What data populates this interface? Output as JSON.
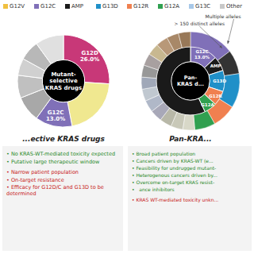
{
  "legend": "top",
  "legend_items": [
    {
      "name": "G12V",
      "color": "#F0C040"
    },
    {
      "name": "G12C",
      "color": "#8070B8"
    },
    {
      "name": "AMP",
      "color": "#1A1A1A"
    },
    {
      "name": "G13D",
      "color": "#2090C8"
    },
    {
      "name": "G12R",
      "color": "#F08050"
    },
    {
      "name": "G12A",
      "color": "#30A050"
    },
    {
      "name": "G13C",
      "color": "#A8C8E8"
    },
    {
      "name": "Other",
      "color": "#C8C8C8"
    }
  ],
  "chart_data": [
    {
      "type": "pie",
      "title": "...ective KRAS drugs",
      "center_text": "Mutant-\nselective\nKRAS drugs",
      "values": [
        26.0,
        21.0,
        13.0,
        9.0,
        8.0,
        6.0,
        7.0,
        10.0
      ],
      "colors": [
        "#C83878",
        "#F0E890",
        "#8070B8",
        "#A8A8A8",
        "#C0C0C0",
        "#D0D0D0",
        "#B8B8B8",
        "#E0E0E0"
      ],
      "value_labels": [
        "G12D\n26.0%",
        null,
        "G12C\n13.0%",
        null,
        null,
        null,
        null,
        null
      ],
      "data_labels": true,
      "notes": [
        {
          "color": "#2A8A2A",
          "texts": [
            "• No KRAS-WT-mediated toxicity expected",
            "• Putative large therapeutic window"
          ]
        },
        {
          "color": "#C82020",
          "texts": [
            "• Narrow patient population",
            "• On-target resistance",
            "• Efficacy for G12D/C and G13D to be determined"
          ]
        }
      ]
    },
    {
      "type": "pie",
      "title": "Pan-KRA...",
      "center_text": "Pan-\nKRAS d...",
      "series": [
        {
          "values": [
            13.0,
            7.0,
            10.0,
            7.0,
            6.0,
            57.0
          ],
          "colors": [
            "#8070B8",
            "#1A1A1A",
            "#2090C8",
            "#F08050",
            "#30A050",
            "#1A1A1A"
          ],
          "value_labels": [
            "G12C\n13.0%",
            "AMP",
            "G13D",
            "G12R",
            "G12A",
            null
          ]
        },
        {
          "values": [
            13.0,
            7.0,
            10.0,
            7.0,
            6.0,
            3.5,
            3.5,
            3.5,
            3.5,
            3.5,
            3.5,
            3.5,
            3.5,
            3.5,
            3.5,
            3.5,
            3.5,
            3.5
          ],
          "colors": [
            "#8070B8",
            "#333333",
            "#2090C8",
            "#F08050",
            "#30A050",
            "#D8D8C8",
            "#C8C8B8",
            "#B8B8A8",
            "#A8A8B8",
            "#B0B8C8",
            "#C0C8D0",
            "#A0A8B8",
            "#989898",
            "#A8A0A0",
            "#C8B890",
            "#B89878",
            "#A88868",
            "#987858"
          ]
        }
      ],
      "data_labels": true,
      "annotations": [
        "Multiple alleles",
        "> 150 distinct alleles"
      ],
      "notes": [
        {
          "color": "#2A8A2A",
          "texts": [
            "• Broad patient population",
            "• Cancers driven by KRAS-WT (e...",
            "• Feasibility for undrugged mutant-",
            "• Heterogenous cancers driven by...",
            "• Overcome on-target KRAS resist-",
            "•   ance inhibitors"
          ]
        },
        {
          "color": "#C82020",
          "texts": [
            "• KRAS WT-mediated toxicity unkn..."
          ]
        }
      ]
    }
  ]
}
